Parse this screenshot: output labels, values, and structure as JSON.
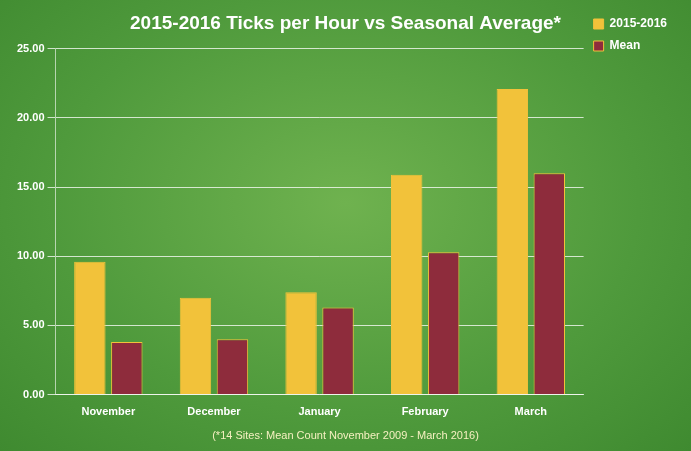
{
  "chart_data": {
    "type": "bar",
    "title": "2015-2016 Ticks per Hour vs Seasonal Average*",
    "annotations": [
      "(*14 Sites: Mean Count November 2009 - March 2016)"
    ],
    "categories": [
      "November",
      "December",
      "January",
      "February",
      "March"
    ],
    "series": [
      {
        "name": "2015-2016",
        "color": "#f2c23a",
        "values": [
          9.6,
          7.0,
          7.4,
          15.9,
          22.1
        ]
      },
      {
        "name": "Mean",
        "color": "#8e2c3c",
        "values": [
          3.8,
          4.0,
          6.3,
          10.3,
          16.0
        ]
      }
    ],
    "ylim": [
      0,
      25
    ],
    "yticks": [
      {
        "value": 0,
        "label": "0.00"
      },
      {
        "value": 5,
        "label": "5.00"
      },
      {
        "value": 10,
        "label": "10.00"
      },
      {
        "value": 15,
        "label": "15.00"
      },
      {
        "value": 20,
        "label": "20.00"
      },
      {
        "value": 25,
        "label": "25.00"
      }
    ],
    "grid": true,
    "legend": "right"
  }
}
